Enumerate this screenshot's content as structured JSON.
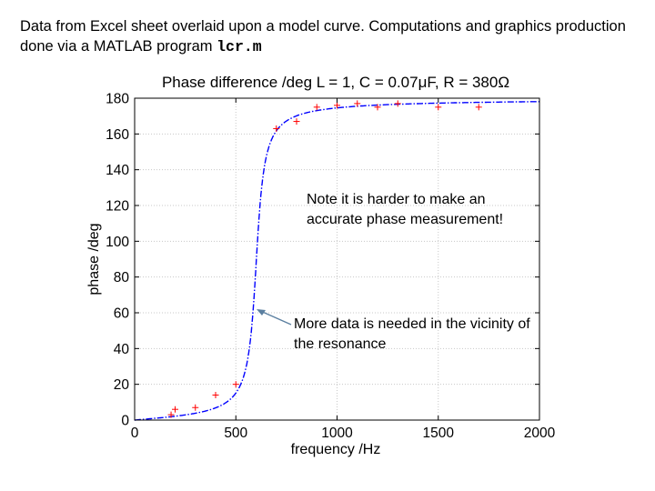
{
  "caption": {
    "text": "Data from Excel sheet overlaid upon a model curve. Computations and graphics production done via a MATLAB program ",
    "program": "lcr.m"
  },
  "annotations": {
    "note1": "Note it is harder to make an accurate phase measurement!",
    "note2": "More data is needed in the vicinity of the resonance"
  },
  "colors": {
    "data": "#ff0000",
    "model": "#0000ff",
    "arrow": "#5b7fa0",
    "grid": "#c8c8c8"
  },
  "chart_data": {
    "type": "line",
    "title": "Phase difference /deg L = 1, C = 0.07μF, R = 380Ω",
    "xlabel": "frequency /Hz",
    "ylabel": "phase /deg",
    "xlim": [
      0,
      2000
    ],
    "ylim": [
      0,
      180
    ],
    "xticks": [
      0,
      500,
      1000,
      1500,
      2000
    ],
    "yticks": [
      0,
      20,
      40,
      60,
      80,
      100,
      120,
      140,
      160,
      180
    ],
    "grid": true,
    "model": {
      "L": 1,
      "C": 7e-08,
      "R": 380,
      "style": "dash-dot"
    },
    "series": [
      {
        "marker": "+",
        "x": [
          180,
          200,
          300,
          400,
          500,
          700,
          800,
          900,
          1000,
          1100,
          1200,
          1300,
          1500,
          1700
        ],
        "y": [
          3,
          6,
          7,
          14,
          20,
          163,
          167,
          175,
          176,
          177,
          175,
          177,
          175,
          175
        ]
      }
    ]
  }
}
